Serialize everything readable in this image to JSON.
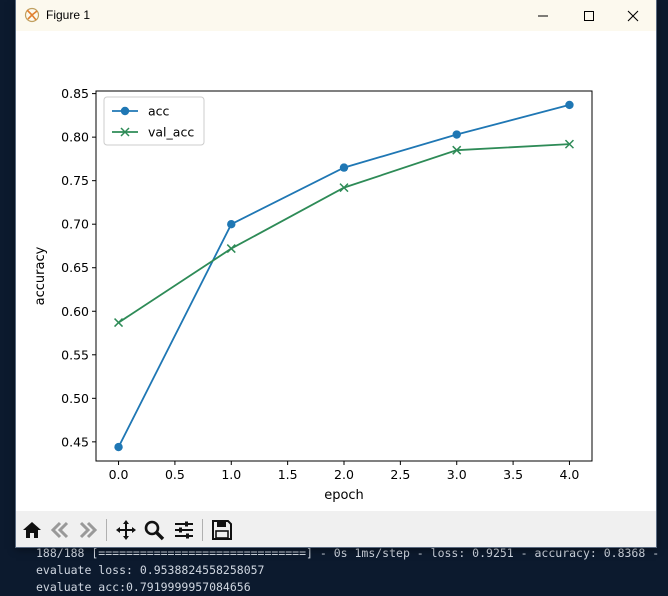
{
  "window": {
    "title": "Figure 1"
  },
  "terminal": {
    "lines": [
      "188/188 [==============================] - 0s 1ms/step - loss: 0.9251 - accuracy: 0.8368 -",
      "evaluate loss: 0.9538824558258057",
      "evaluate acc:0.7919999957084656"
    ]
  },
  "toolbar": {
    "icons": [
      "home-icon",
      "back-icon",
      "forward-icon",
      "pan-icon",
      "zoom-icon",
      "configure-subplots-icon",
      "save-icon"
    ]
  },
  "chart_data": {
    "type": "line",
    "title": "",
    "xlabel": "epoch",
    "ylabel": "accuracy",
    "x": [
      0,
      1,
      2,
      3,
      4
    ],
    "xlim": [
      -0.2,
      4.2
    ],
    "ylim": [
      0.428,
      0.853
    ],
    "xticks": [
      "0.0",
      "0.5",
      "1.0",
      "1.5",
      "2.0",
      "2.5",
      "3.0",
      "3.5",
      "4.0"
    ],
    "xtick_values": [
      0,
      0.5,
      1,
      1.5,
      2,
      2.5,
      3,
      3.5,
      4
    ],
    "yticks": [
      "0.45",
      "0.50",
      "0.55",
      "0.60",
      "0.65",
      "0.70",
      "0.75",
      "0.80",
      "0.85"
    ],
    "ytick_values": [
      0.45,
      0.5,
      0.55,
      0.6,
      0.65,
      0.7,
      0.75,
      0.8,
      0.85
    ],
    "legend_position": "upper left",
    "grid": false,
    "series": [
      {
        "name": "acc",
        "values": [
          0.444,
          0.7,
          0.765,
          0.803,
          0.837
        ],
        "color": "#1f77b4",
        "marker": "o"
      },
      {
        "name": "val_acc",
        "values": [
          0.587,
          0.672,
          0.742,
          0.785,
          0.792
        ],
        "color": "#2e8b57",
        "marker": "x"
      }
    ]
  }
}
